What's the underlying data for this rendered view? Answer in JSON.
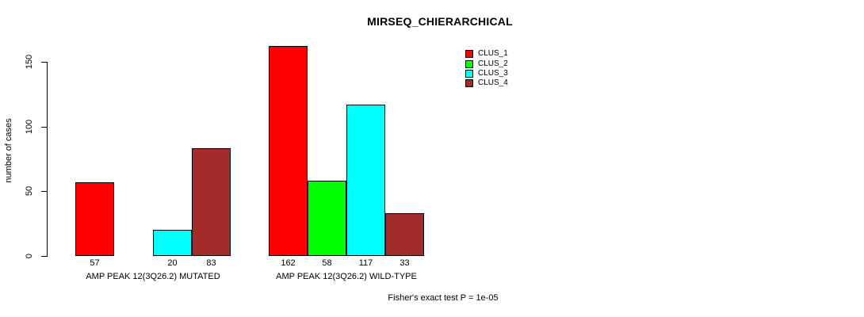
{
  "chart_data": {
    "type": "bar",
    "title": "MIRSEQ_CHIERARCHICAL",
    "ylabel": "number of cases",
    "xlabel": "",
    "yticks": [
      0,
      50,
      100,
      150
    ],
    "ylim": [
      0,
      165
    ],
    "grid": false,
    "footnote": "Fisher's exact test P = 1e-05",
    "legend": {
      "position": "top-right",
      "entries": [
        {
          "label": "CLUS_1",
          "color": "#FF0000"
        },
        {
          "label": "CLUS_2",
          "color": "#00FF00"
        },
        {
          "label": "CLUS_3",
          "color": "#00FFFF"
        },
        {
          "label": "CLUS_4",
          "color": "#A52A2A"
        }
      ]
    },
    "groups": [
      {
        "label": "AMP PEAK 12(3Q26.2) MUTATED",
        "values": [
          57,
          null,
          20,
          83
        ],
        "bar_labels": [
          "57",
          "",
          "20",
          "83"
        ]
      },
      {
        "label": "AMP PEAK 12(3Q26.2) WILD-TYPE",
        "values": [
          162,
          58,
          117,
          33
        ],
        "bar_labels": [
          "162",
          "58",
          "117",
          "33"
        ]
      }
    ],
    "colors": {
      "background": "#FFFFFF",
      "axis": "#000000",
      "text": "#000000"
    }
  }
}
